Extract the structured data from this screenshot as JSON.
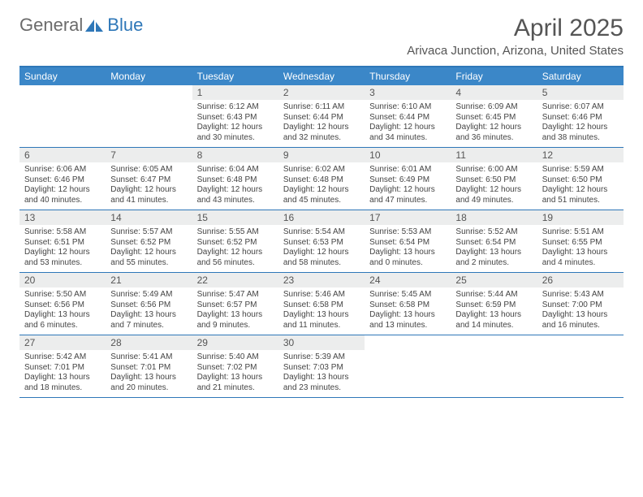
{
  "brand": {
    "part1": "General",
    "part2": "Blue"
  },
  "title": "April 2025",
  "location": "Arivaca Junction, Arizona, United States",
  "colors": {
    "header_bg": "#3b87c8",
    "border": "#2e77b8",
    "daynum_bg": "#eceded",
    "text": "#444444",
    "title": "#555555"
  },
  "day_labels": [
    "Sunday",
    "Monday",
    "Tuesday",
    "Wednesday",
    "Thursday",
    "Friday",
    "Saturday"
  ],
  "weeks": [
    [
      null,
      null,
      {
        "n": "1",
        "sr": "6:12 AM",
        "ss": "6:43 PM",
        "dl": "12 hours and 30 minutes."
      },
      {
        "n": "2",
        "sr": "6:11 AM",
        "ss": "6:44 PM",
        "dl": "12 hours and 32 minutes."
      },
      {
        "n": "3",
        "sr": "6:10 AM",
        "ss": "6:44 PM",
        "dl": "12 hours and 34 minutes."
      },
      {
        "n": "4",
        "sr": "6:09 AM",
        "ss": "6:45 PM",
        "dl": "12 hours and 36 minutes."
      },
      {
        "n": "5",
        "sr": "6:07 AM",
        "ss": "6:46 PM",
        "dl": "12 hours and 38 minutes."
      }
    ],
    [
      {
        "n": "6",
        "sr": "6:06 AM",
        "ss": "6:46 PM",
        "dl": "12 hours and 40 minutes."
      },
      {
        "n": "7",
        "sr": "6:05 AM",
        "ss": "6:47 PM",
        "dl": "12 hours and 41 minutes."
      },
      {
        "n": "8",
        "sr": "6:04 AM",
        "ss": "6:48 PM",
        "dl": "12 hours and 43 minutes."
      },
      {
        "n": "9",
        "sr": "6:02 AM",
        "ss": "6:48 PM",
        "dl": "12 hours and 45 minutes."
      },
      {
        "n": "10",
        "sr": "6:01 AM",
        "ss": "6:49 PM",
        "dl": "12 hours and 47 minutes."
      },
      {
        "n": "11",
        "sr": "6:00 AM",
        "ss": "6:50 PM",
        "dl": "12 hours and 49 minutes."
      },
      {
        "n": "12",
        "sr": "5:59 AM",
        "ss": "6:50 PM",
        "dl": "12 hours and 51 minutes."
      }
    ],
    [
      {
        "n": "13",
        "sr": "5:58 AM",
        "ss": "6:51 PM",
        "dl": "12 hours and 53 minutes."
      },
      {
        "n": "14",
        "sr": "5:57 AM",
        "ss": "6:52 PM",
        "dl": "12 hours and 55 minutes."
      },
      {
        "n": "15",
        "sr": "5:55 AM",
        "ss": "6:52 PM",
        "dl": "12 hours and 56 minutes."
      },
      {
        "n": "16",
        "sr": "5:54 AM",
        "ss": "6:53 PM",
        "dl": "12 hours and 58 minutes."
      },
      {
        "n": "17",
        "sr": "5:53 AM",
        "ss": "6:54 PM",
        "dl": "13 hours and 0 minutes."
      },
      {
        "n": "18",
        "sr": "5:52 AM",
        "ss": "6:54 PM",
        "dl": "13 hours and 2 minutes."
      },
      {
        "n": "19",
        "sr": "5:51 AM",
        "ss": "6:55 PM",
        "dl": "13 hours and 4 minutes."
      }
    ],
    [
      {
        "n": "20",
        "sr": "5:50 AM",
        "ss": "6:56 PM",
        "dl": "13 hours and 6 minutes."
      },
      {
        "n": "21",
        "sr": "5:49 AM",
        "ss": "6:56 PM",
        "dl": "13 hours and 7 minutes."
      },
      {
        "n": "22",
        "sr": "5:47 AM",
        "ss": "6:57 PM",
        "dl": "13 hours and 9 minutes."
      },
      {
        "n": "23",
        "sr": "5:46 AM",
        "ss": "6:58 PM",
        "dl": "13 hours and 11 minutes."
      },
      {
        "n": "24",
        "sr": "5:45 AM",
        "ss": "6:58 PM",
        "dl": "13 hours and 13 minutes."
      },
      {
        "n": "25",
        "sr": "5:44 AM",
        "ss": "6:59 PM",
        "dl": "13 hours and 14 minutes."
      },
      {
        "n": "26",
        "sr": "5:43 AM",
        "ss": "7:00 PM",
        "dl": "13 hours and 16 minutes."
      }
    ],
    [
      {
        "n": "27",
        "sr": "5:42 AM",
        "ss": "7:01 PM",
        "dl": "13 hours and 18 minutes."
      },
      {
        "n": "28",
        "sr": "5:41 AM",
        "ss": "7:01 PM",
        "dl": "13 hours and 20 minutes."
      },
      {
        "n": "29",
        "sr": "5:40 AM",
        "ss": "7:02 PM",
        "dl": "13 hours and 21 minutes."
      },
      {
        "n": "30",
        "sr": "5:39 AM",
        "ss": "7:03 PM",
        "dl": "13 hours and 23 minutes."
      },
      null,
      null,
      null
    ]
  ],
  "labels": {
    "sunrise": "Sunrise: ",
    "sunset": "Sunset: ",
    "daylight": "Daylight: "
  }
}
